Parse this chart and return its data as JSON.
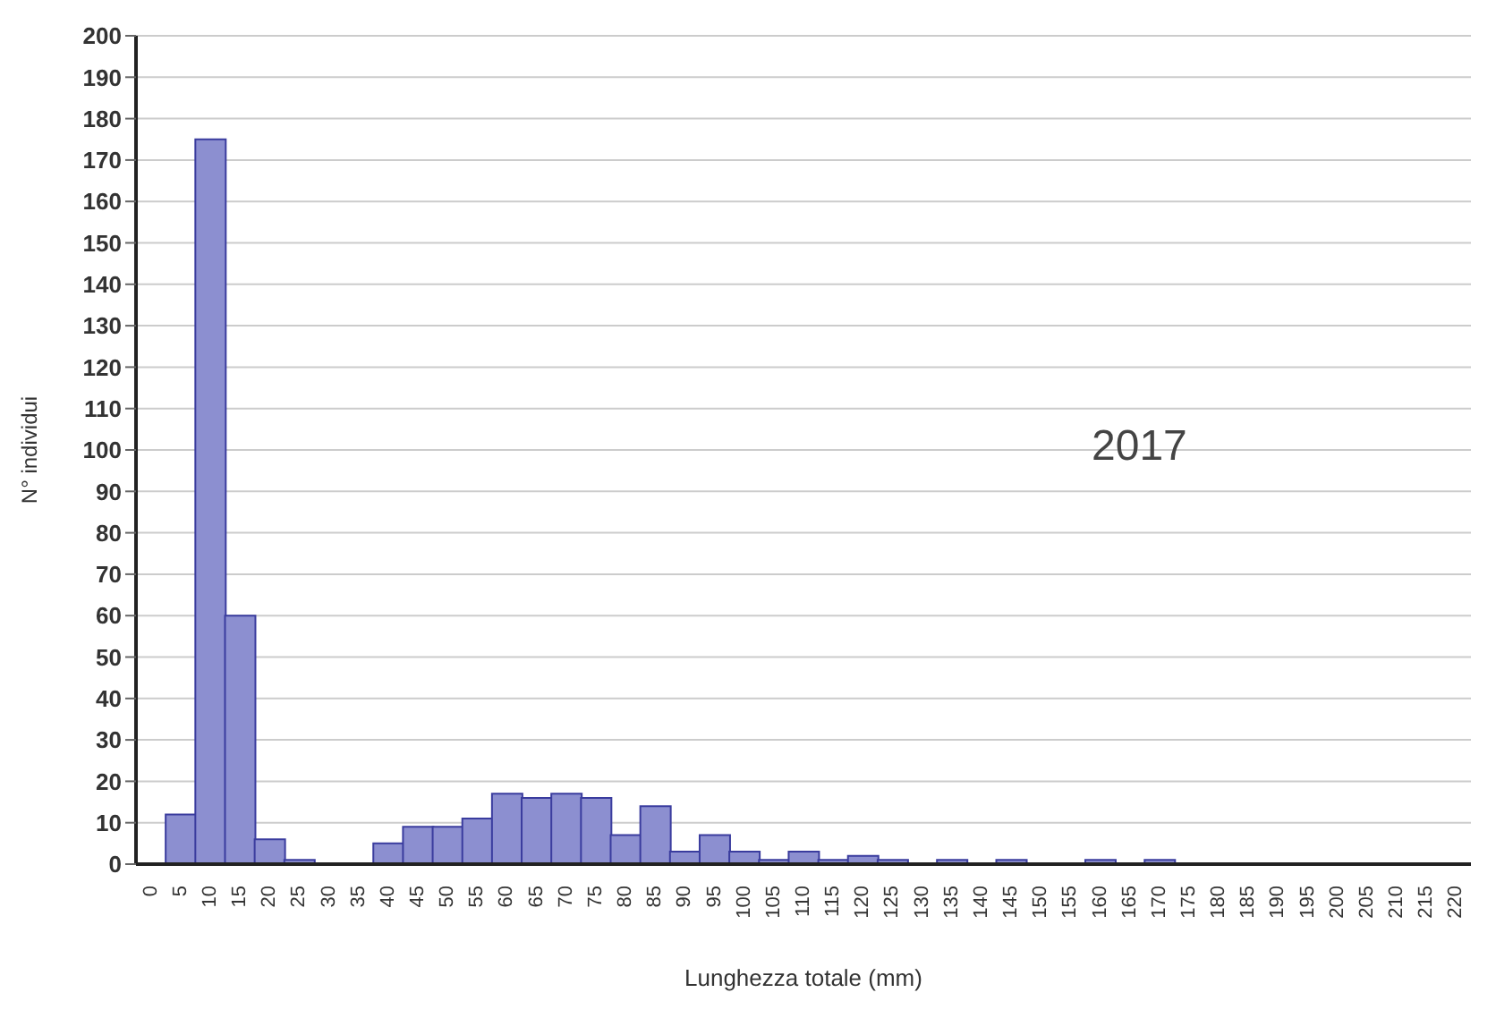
{
  "chart_data": {
    "type": "bar",
    "xlabel": "Lunghezza totale (mm)",
    "ylabel": "N° individui",
    "categories": [
      "0",
      "5",
      "10",
      "15",
      "20",
      "25",
      "30",
      "35",
      "40",
      "45",
      "50",
      "55",
      "60",
      "65",
      "70",
      "75",
      "80",
      "85",
      "90",
      "95",
      "100",
      "105",
      "110",
      "115",
      "120",
      "125",
      "130",
      "135",
      "140",
      "145",
      "150",
      "155",
      "160",
      "165",
      "170",
      "175",
      "180",
      "185",
      "190",
      "195",
      "200",
      "205",
      "210",
      "215",
      "220"
    ],
    "values": [
      0,
      12,
      175,
      60,
      6,
      1,
      0,
      0,
      5,
      9,
      9,
      11,
      17,
      16,
      17,
      16,
      7,
      14,
      3,
      7,
      3,
      1,
      3,
      1,
      2,
      1,
      0,
      1,
      0,
      1,
      0,
      0,
      1,
      0,
      1,
      0,
      0,
      0,
      0,
      0,
      0,
      0,
      0,
      0,
      0
    ],
    "color": "#8c8fd0",
    "ylim": [
      0,
      200
    ],
    "yticks": [
      0,
      10,
      20,
      30,
      40,
      50,
      60,
      70,
      80,
      90,
      100,
      110,
      120,
      130,
      140,
      150,
      160,
      170,
      180,
      190,
      200
    ],
    "grid": "y",
    "annotations": [
      "2017"
    ]
  }
}
